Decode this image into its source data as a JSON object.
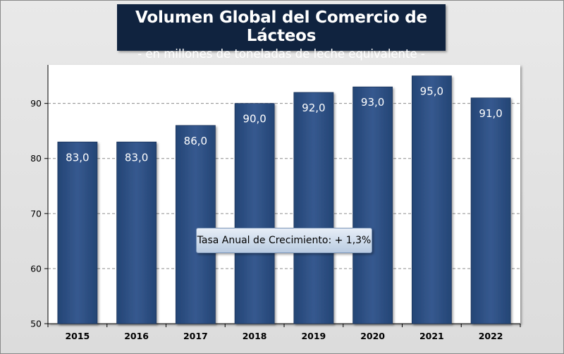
{
  "chart_data": {
    "type": "bar",
    "title": "Volumen Global del Comercio de Lácteos",
    "subtitle": "- en millones de toneladas de leche equivalente -",
    "categories": [
      "2015",
      "2016",
      "2017",
      "2018",
      "2019",
      "2020",
      "2021",
      "2022"
    ],
    "values": [
      83.0,
      83.0,
      86.0,
      90.0,
      92.0,
      93.0,
      95.0,
      91.0
    ],
    "data_labels": [
      "83,0",
      "83,0",
      "86,0",
      "90,0",
      "92,0",
      "93,0",
      "95,0",
      "91,0"
    ],
    "y_ticks": [
      50,
      60,
      70,
      80,
      90
    ],
    "ylim": [
      50,
      97
    ],
    "xlabel": "",
    "ylabel": "",
    "grid": "horizontal dashed",
    "bar_color": "#2d5085",
    "annotation": "Tasa Anual de Crecimiento: + 1,3%"
  }
}
